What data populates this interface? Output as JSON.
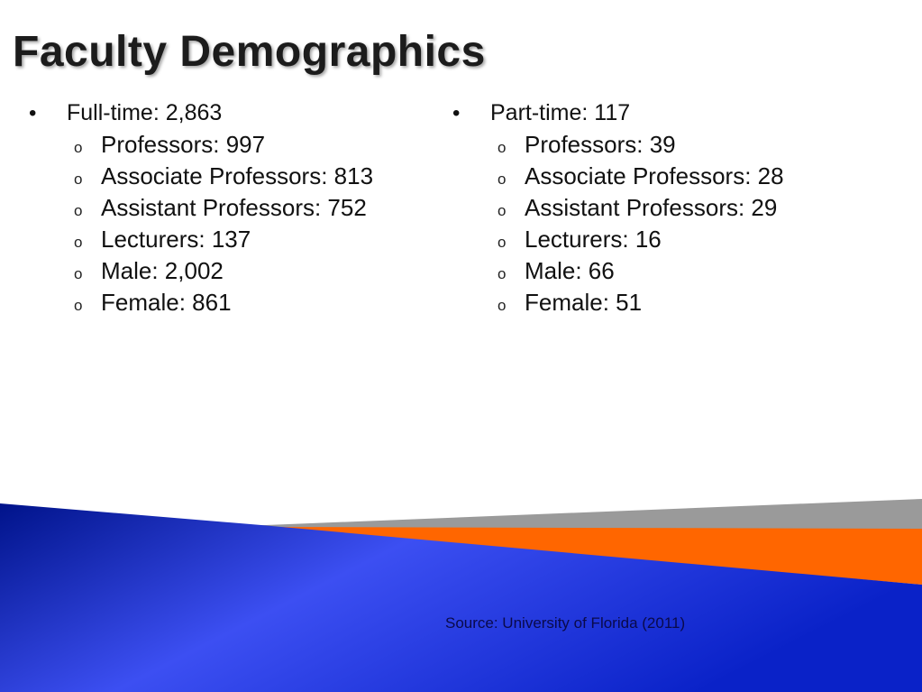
{
  "title": "Faculty Demographics",
  "full_time": {
    "label": "Full-time: 2,863",
    "items": [
      "Professors: 997",
      "Associate Professors: 813",
      "Assistant Professors: 752",
      "Lecturers: 137",
      "Male: 2,002",
      "Female: 861"
    ]
  },
  "part_time": {
    "label": "Part-time: 117",
    "items": [
      "Professors: 39",
      "Associate Professors: 28",
      "Assistant Professors: 29",
      "Lecturers: 16",
      "Male: 66",
      "Female: 51"
    ]
  },
  "bullets": {
    "primary": "•",
    "secondary": "o"
  },
  "source": "Source: University of Florida (2011)",
  "colors": {
    "blue_dark": "#00148c",
    "blue_light": "#3a4cf0",
    "orange": "#ff6600",
    "gray": "#9a9a9a"
  }
}
